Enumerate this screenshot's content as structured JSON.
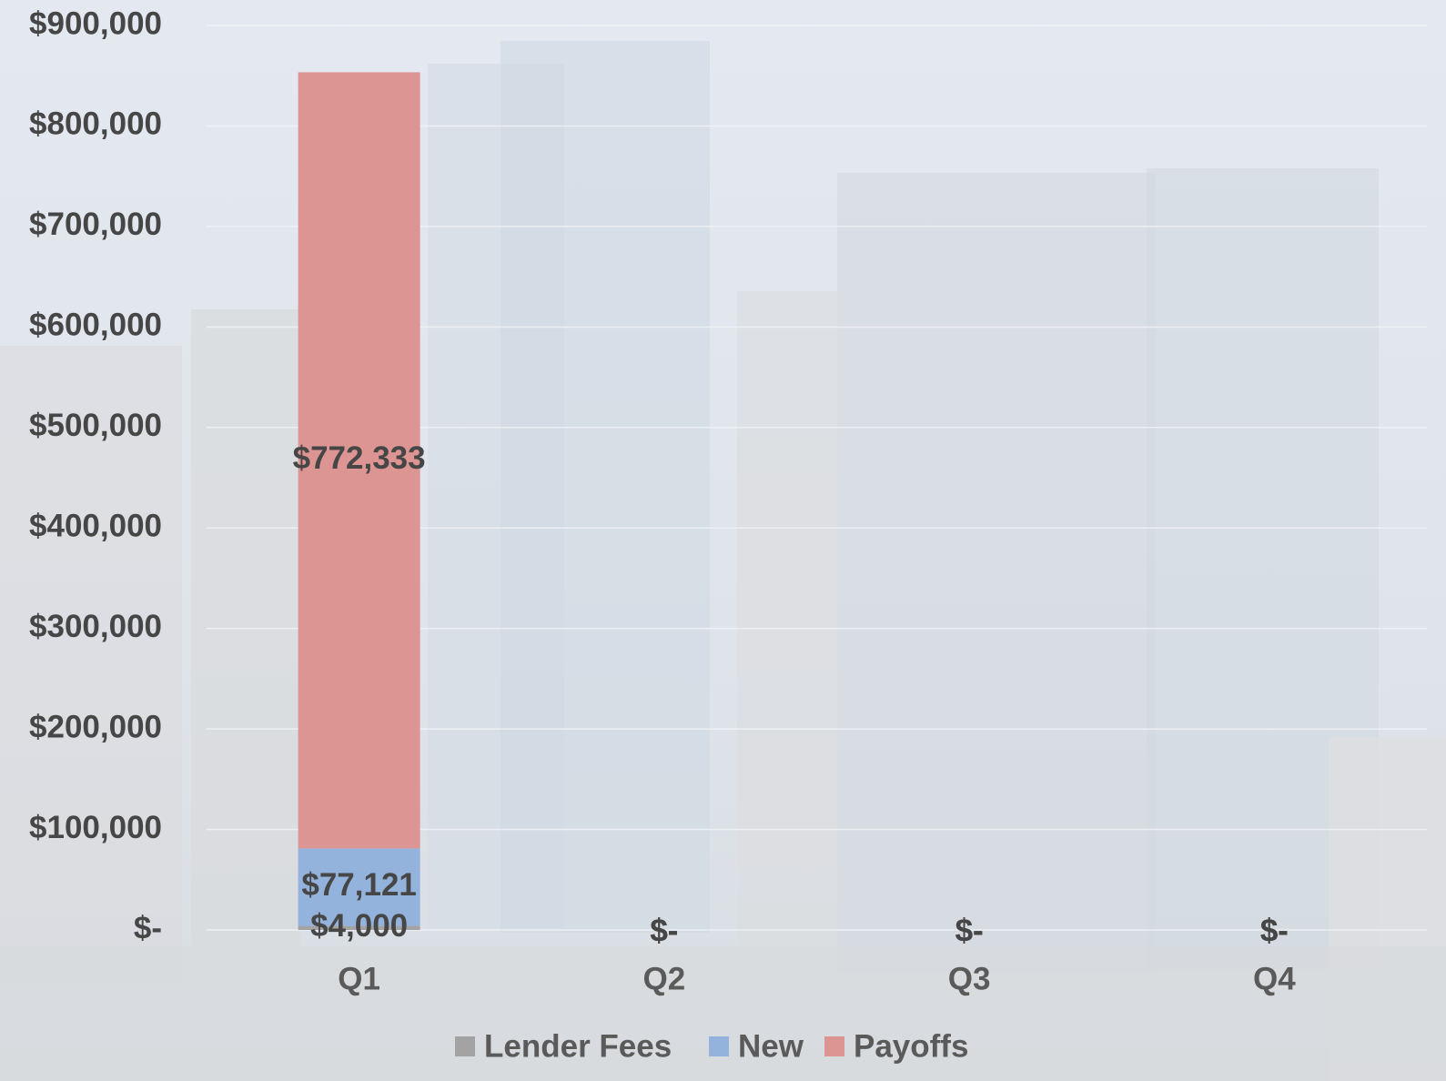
{
  "chart_data": {
    "type": "stacked-bar",
    "categories": [
      "Q1",
      "Q2",
      "Q3",
      "Q4"
    ],
    "series": [
      {
        "name": "Lender Fees",
        "color": "#a3a3a3",
        "values": [
          4000,
          0,
          0,
          0
        ],
        "value_labels": [
          "$4,000",
          "$-",
          "$-",
          "$-"
        ]
      },
      {
        "name": "New",
        "color": "#94b3dc",
        "values": [
          77121,
          0,
          0,
          0
        ],
        "value_labels": [
          "$77,121",
          "$-",
          "$-",
          "$-"
        ]
      },
      {
        "name": "Payoffs",
        "color": "#dc9592",
        "values": [
          772333,
          0,
          0,
          0
        ],
        "value_labels": [
          "$772,333",
          "$-",
          "$-",
          "$-"
        ]
      }
    ],
    "ylim": [
      0,
      900000
    ],
    "yticks": [
      {
        "value": 0,
        "label": "$-"
      },
      {
        "value": 100000,
        "label": "$100,000"
      },
      {
        "value": 200000,
        "label": "$200,000"
      },
      {
        "value": 300000,
        "label": "$300,000"
      },
      {
        "value": 400000,
        "label": "$400,000"
      },
      {
        "value": 500000,
        "label": "$500,000"
      },
      {
        "value": 600000,
        "label": "$600,000"
      },
      {
        "value": 700000,
        "label": "$700,000"
      },
      {
        "value": 800000,
        "label": "$800,000"
      },
      {
        "value": 900000,
        "label": "$900,000"
      }
    ],
    "grid": true,
    "legend": "bottom"
  }
}
